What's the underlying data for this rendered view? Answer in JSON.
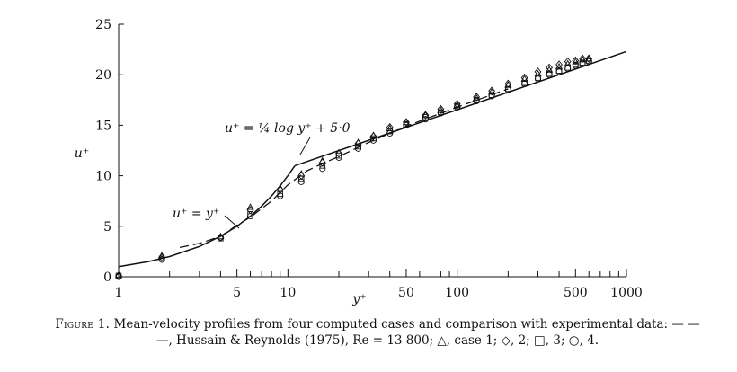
{
  "chart_data": {
    "type": "scatter",
    "xscale": "log",
    "xlim": [
      1,
      1000
    ],
    "ylim": [
      0,
      25
    ],
    "xlabel": "y⁺",
    "ylabel": "u⁺",
    "x_ticks": [
      1,
      5,
      10,
      50,
      100,
      500,
      1000
    ],
    "x_tick_labels": [
      "1",
      "5",
      "10",
      "50",
      "100",
      "500",
      "1000"
    ],
    "y_ticks": [
      0,
      5,
      10,
      15,
      20,
      25
    ],
    "y_tick_labels": [
      "0",
      "5",
      "10",
      "15",
      "20",
      "25"
    ],
    "grid": false,
    "annotations": [
      {
        "text": "u⁺ = ¼ log y⁺ + 5·0"
      },
      {
        "text": "u⁺ = y⁺"
      }
    ],
    "reference_lines": [
      {
        "name": "u⁺ = y⁺",
        "x": [
          1,
          1.5,
          2,
          3,
          4,
          5,
          6,
          7,
          8,
          9,
          10,
          11
        ],
        "y": [
          1,
          1.5,
          2,
          3,
          4,
          5,
          6,
          7,
          8,
          9,
          10,
          11
        ]
      },
      {
        "name": "u⁺ = ¼ log y⁺ + 5·0",
        "x": [
          11,
          1000
        ],
        "y": [
          11.0,
          22.3
        ]
      }
    ],
    "series": [
      {
        "name": "Hussain & Reynolds (1975), Re = 13800",
        "style": "dashed",
        "x": [
          2.3,
          3,
          4,
          5,
          6,
          8,
          10,
          13,
          16,
          20,
          30,
          50,
          100,
          200
        ],
        "y": [
          2.9,
          3.3,
          4.0,
          5.1,
          5.9,
          7.5,
          9.1,
          10.5,
          11.2,
          11.9,
          13.3,
          14.9,
          16.8,
          18.6
        ]
      },
      {
        "name": "case 1",
        "marker": "triangle",
        "x": [
          1,
          1.8,
          4,
          6,
          9,
          12,
          16,
          20,
          26,
          32,
          40,
          50,
          65,
          80,
          100,
          130,
          160,
          200,
          250,
          300,
          350,
          400,
          450,
          500,
          550,
          600
        ],
        "y": [
          0.2,
          2.1,
          4.0,
          6.9,
          8.8,
          10.2,
          11.5,
          12.3,
          13.3,
          14.0,
          14.7,
          15.3,
          16.0,
          16.5,
          17.0,
          17.7,
          18.3,
          19.0,
          19.6,
          20.1,
          20.5,
          20.8,
          21.1,
          21.3,
          21.5,
          21.6
        ]
      },
      {
        "name": "2",
        "marker": "diamond",
        "x": [
          1,
          1.8,
          4,
          6,
          9,
          12,
          16,
          20,
          26,
          32,
          40,
          50,
          65,
          80,
          100,
          130,
          160,
          200,
          250,
          300,
          350,
          400,
          450,
          500,
          550,
          600
        ],
        "y": [
          0.1,
          1.9,
          3.9,
          6.6,
          8.6,
          10.0,
          11.3,
          12.2,
          13.2,
          13.9,
          14.8,
          15.3,
          16.0,
          16.6,
          17.1,
          17.8,
          18.4,
          19.1,
          19.7,
          20.3,
          20.7,
          21.0,
          21.3,
          21.4,
          21.6,
          21.6
        ]
      },
      {
        "name": "3",
        "marker": "square",
        "x": [
          1,
          1.8,
          4,
          6,
          9,
          12,
          16,
          20,
          26,
          32,
          40,
          50,
          65,
          80,
          100,
          130,
          160,
          200,
          250,
          300,
          350,
          400,
          450,
          500,
          550,
          600
        ],
        "y": [
          0.1,
          1.8,
          3.8,
          6.2,
          8.2,
          9.7,
          11.0,
          12.0,
          12.9,
          13.7,
          14.4,
          15.1,
          15.8,
          16.3,
          16.9,
          17.5,
          18.0,
          18.6,
          19.2,
          19.7,
          20.1,
          20.4,
          20.7,
          21.0,
          21.2,
          21.4
        ]
      },
      {
        "name": "4",
        "marker": "circle",
        "x": [
          1,
          1.8,
          4,
          6,
          9,
          12,
          16,
          20,
          26,
          32,
          40,
          50,
          65,
          80,
          100,
          130,
          160,
          200,
          250,
          300,
          350,
          400,
          450,
          500,
          550,
          600
        ],
        "y": [
          0.0,
          1.7,
          3.9,
          6.0,
          8.0,
          9.4,
          10.7,
          11.8,
          12.7,
          13.5,
          14.2,
          15.0,
          15.6,
          16.2,
          16.8,
          17.4,
          17.9,
          18.5,
          19.1,
          19.6,
          20.0,
          20.3,
          20.6,
          20.9,
          21.1,
          21.3
        ]
      }
    ]
  },
  "caption": {
    "label": "Figure 1.",
    "text": "Mean-velocity profiles from four computed cases and comparison with experimental data: — — —, Hussain & Reynolds (1975), Re = 13 800; △, case 1; ◇, 2; □, 3; ○, 4."
  }
}
